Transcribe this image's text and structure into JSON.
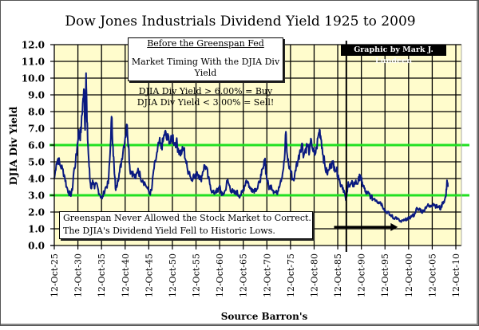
{
  "chart_data": {
    "type": "line",
    "title": "Dow Jones Industrials Dividend Yield 1925 to 2009",
    "xlabel": "Source Barron's",
    "ylabel": "DJIA Div Yield",
    "ylim": [
      0,
      12
    ],
    "xlim": [
      1925.78,
      2010.78
    ],
    "yticks": [
      "0.0",
      "1.0",
      "2.0",
      "3.0",
      "4.0",
      "5.0",
      "6.0",
      "7.0",
      "8.0",
      "9.0",
      "10.0",
      "11.0",
      "12.0"
    ],
    "xticks": [
      "12-Oct-25",
      "12-Oct-30",
      "12-Oct-35",
      "12-Oct-40",
      "12-Oct-45",
      "12-Oct-50",
      "12-Oct-55",
      "12-Oct-60",
      "12-Oct-65",
      "12-Oct-70",
      "12-Oct-75",
      "12-Oct-80",
      "12-Oct-85",
      "12-Oct-90",
      "12-Oct-95",
      "12-Oct-00",
      "12-Oct-05",
      "12-Oct-10"
    ],
    "grid": true,
    "reference_lines": [
      {
        "name": "buy-threshold",
        "y": 6.0,
        "color": "#22e022"
      },
      {
        "name": "sell-threshold",
        "y": 3.0,
        "color": "#22e022"
      }
    ],
    "vertical_marker": {
      "name": "greenspan-start",
      "x": 1987.6
    },
    "series": [
      {
        "name": "DJIA Dividend Yield",
        "color": "#0a1a80",
        "points": [
          [
            1925.8,
            4.0
          ],
          [
            1926.2,
            4.9
          ],
          [
            1926.6,
            5.2
          ],
          [
            1927.0,
            4.8
          ],
          [
            1927.5,
            4.6
          ],
          [
            1928.0,
            4.1
          ],
          [
            1928.4,
            3.5
          ],
          [
            1928.8,
            3.2
          ],
          [
            1929.2,
            3.0
          ],
          [
            1929.6,
            3.3
          ],
          [
            1929.9,
            4.4
          ],
          [
            1930.3,
            5.0
          ],
          [
            1930.6,
            5.8
          ],
          [
            1930.9,
            6.8
          ],
          [
            1931.2,
            6.4
          ],
          [
            1931.5,
            7.1
          ],
          [
            1931.8,
            8.5
          ],
          [
            1932.1,
            9.3
          ],
          [
            1932.3,
            6.9
          ],
          [
            1932.5,
            10.3
          ],
          [
            1932.7,
            7.4
          ],
          [
            1933.0,
            5.5
          ],
          [
            1933.3,
            4.0
          ],
          [
            1933.6,
            3.4
          ],
          [
            1933.9,
            3.9
          ],
          [
            1934.3,
            3.4
          ],
          [
            1934.7,
            3.7
          ],
          [
            1935.1,
            3.3
          ],
          [
            1935.5,
            3.0
          ],
          [
            1935.9,
            2.8
          ],
          [
            1936.3,
            3.2
          ],
          [
            1936.7,
            3.5
          ],
          [
            1937.2,
            3.7
          ],
          [
            1937.6,
            5.5
          ],
          [
            1937.9,
            7.7
          ],
          [
            1938.2,
            6.0
          ],
          [
            1938.5,
            4.3
          ],
          [
            1938.8,
            3.3
          ],
          [
            1939.2,
            3.9
          ],
          [
            1939.6,
            4.4
          ],
          [
            1940.0,
            5.0
          ],
          [
            1940.4,
            5.8
          ],
          [
            1940.8,
            6.5
          ],
          [
            1941.2,
            7.2
          ],
          [
            1941.5,
            6.0
          ],
          [
            1941.8,
            4.5
          ],
          [
            1942.2,
            4.4
          ],
          [
            1942.6,
            4.2
          ],
          [
            1943.0,
            4.0
          ],
          [
            1943.5,
            4.6
          ],
          [
            1944.0,
            4.1
          ],
          [
            1944.5,
            3.9
          ],
          [
            1945.0,
            3.7
          ],
          [
            1945.5,
            3.4
          ],
          [
            1946.0,
            3.1
          ],
          [
            1946.4,
            3.3
          ],
          [
            1946.8,
            4.5
          ],
          [
            1947.2,
            5.0
          ],
          [
            1947.6,
            5.6
          ],
          [
            1948.0,
            6.2
          ],
          [
            1948.4,
            5.8
          ],
          [
            1948.8,
            6.2
          ],
          [
            1949.2,
            6.8
          ],
          [
            1949.6,
            6.3
          ],
          [
            1950.0,
            6.5
          ],
          [
            1950.4,
            6.1
          ],
          [
            1950.8,
            6.6
          ],
          [
            1951.2,
            6.1
          ],
          [
            1951.6,
            6.2
          ],
          [
            1952.0,
            5.8
          ],
          [
            1952.4,
            5.5
          ],
          [
            1952.8,
            5.6
          ],
          [
            1953.2,
            5.8
          ],
          [
            1953.6,
            5.1
          ],
          [
            1954.0,
            4.5
          ],
          [
            1954.4,
            4.4
          ],
          [
            1954.8,
            3.9
          ],
          [
            1955.2,
            4.2
          ],
          [
            1955.6,
            4.0
          ],
          [
            1956.0,
            4.4
          ],
          [
            1956.4,
            4.2
          ],
          [
            1956.8,
            3.9
          ],
          [
            1957.2,
            4.4
          ],
          [
            1957.6,
            4.8
          ],
          [
            1958.0,
            4.6
          ],
          [
            1958.4,
            4.0
          ],
          [
            1958.8,
            3.6
          ],
          [
            1959.2,
            3.2
          ],
          [
            1959.6,
            3.1
          ],
          [
            1960.0,
            3.3
          ],
          [
            1960.4,
            3.2
          ],
          [
            1960.8,
            3.6
          ],
          [
            1961.2,
            3.0
          ],
          [
            1961.6,
            3.1
          ],
          [
            1962.0,
            3.3
          ],
          [
            1962.4,
            3.9
          ],
          [
            1962.8,
            3.6
          ],
          [
            1963.2,
            3.3
          ],
          [
            1963.6,
            3.2
          ],
          [
            1964.0,
            3.1
          ],
          [
            1964.4,
            3.2
          ],
          [
            1964.8,
            3.0
          ],
          [
            1965.2,
            3.0
          ],
          [
            1965.6,
            3.2
          ],
          [
            1966.0,
            3.5
          ],
          [
            1966.4,
            3.9
          ],
          [
            1966.8,
            3.8
          ],
          [
            1967.2,
            3.4
          ],
          [
            1967.6,
            3.4
          ],
          [
            1968.0,
            3.3
          ],
          [
            1968.4,
            3.4
          ],
          [
            1968.8,
            3.4
          ],
          [
            1969.2,
            3.8
          ],
          [
            1969.6,
            4.2
          ],
          [
            1970.0,
            4.6
          ],
          [
            1970.4,
            5.2
          ],
          [
            1970.6,
            4.3
          ],
          [
            1970.9,
            3.8
          ],
          [
            1971.3,
            3.4
          ],
          [
            1971.7,
            3.6
          ],
          [
            1972.1,
            3.3
          ],
          [
            1972.5,
            3.2
          ],
          [
            1972.9,
            3.1
          ],
          [
            1973.3,
            3.5
          ],
          [
            1973.7,
            3.9
          ],
          [
            1974.1,
            4.3
          ],
          [
            1974.5,
            5.1
          ],
          [
            1974.8,
            6.8
          ],
          [
            1975.0,
            5.6
          ],
          [
            1975.4,
            4.8
          ],
          [
            1975.8,
            4.5
          ],
          [
            1976.2,
            4.0
          ],
          [
            1976.6,
            4.0
          ],
          [
            1977.0,
            4.8
          ],
          [
            1977.4,
            5.1
          ],
          [
            1977.8,
            5.7
          ],
          [
            1978.2,
            6.1
          ],
          [
            1978.6,
            5.4
          ],
          [
            1979.0,
            5.8
          ],
          [
            1979.4,
            6.0
          ],
          [
            1979.8,
            5.6
          ],
          [
            1980.2,
            6.3
          ],
          [
            1980.6,
            5.6
          ],
          [
            1980.9,
            5.4
          ],
          [
            1981.3,
            5.8
          ],
          [
            1981.7,
            6.6
          ],
          [
            1982.0,
            6.9
          ],
          [
            1982.3,
            6.3
          ],
          [
            1982.7,
            5.4
          ],
          [
            1983.1,
            4.7
          ],
          [
            1983.5,
            4.3
          ],
          [
            1983.9,
            4.5
          ],
          [
            1984.3,
            4.9
          ],
          [
            1984.7,
            4.9
          ],
          [
            1985.1,
            4.7
          ],
          [
            1985.5,
            4.5
          ],
          [
            1985.9,
            4.2
          ],
          [
            1986.3,
            3.7
          ],
          [
            1986.7,
            3.6
          ],
          [
            1987.1,
            3.3
          ],
          [
            1987.5,
            2.7
          ],
          [
            1987.8,
            3.2
          ],
          [
            1988.0,
            3.8
          ],
          [
            1988.3,
            3.5
          ],
          [
            1988.7,
            3.7
          ],
          [
            1989.1,
            3.6
          ],
          [
            1989.5,
            3.8
          ],
          [
            1989.9,
            3.7
          ],
          [
            1990.3,
            4.0
          ],
          [
            1990.6,
            4.2
          ],
          [
            1990.9,
            3.7
          ],
          [
            1991.2,
            3.6
          ],
          [
            1991.6,
            3.2
          ],
          [
            1992.0,
            3.1
          ],
          [
            1992.4,
            3.1
          ],
          [
            1992.8,
            2.9
          ],
          [
            1993.2,
            2.8
          ],
          [
            1993.6,
            2.8
          ],
          [
            1994.0,
            2.7
          ],
          [
            1994.4,
            2.6
          ],
          [
            1994.8,
            2.6
          ],
          [
            1995.2,
            2.4
          ],
          [
            1995.6,
            2.2
          ],
          [
            1996.0,
            2.0
          ],
          [
            1996.4,
            2.0
          ],
          [
            1996.8,
            1.8
          ],
          [
            1997.2,
            1.8
          ],
          [
            1997.6,
            1.6
          ],
          [
            1998.0,
            1.7
          ],
          [
            1998.4,
            1.6
          ],
          [
            1998.8,
            1.5
          ],
          [
            1999.2,
            1.4
          ],
          [
            1999.6,
            1.5
          ],
          [
            2000.0,
            1.5
          ],
          [
            2000.4,
            1.6
          ],
          [
            2000.8,
            1.6
          ],
          [
            2001.2,
            1.7
          ],
          [
            2001.6,
            1.8
          ],
          [
            2002.0,
            1.8
          ],
          [
            2002.4,
            2.2
          ],
          [
            2002.8,
            2.1
          ],
          [
            2003.2,
            2.2
          ],
          [
            2003.6,
            2.0
          ],
          [
            2004.0,
            2.1
          ],
          [
            2004.4,
            2.3
          ],
          [
            2004.8,
            2.4
          ],
          [
            2005.2,
            2.3
          ],
          [
            2005.6,
            2.4
          ],
          [
            2006.0,
            2.5
          ],
          [
            2006.4,
            2.4
          ],
          [
            2006.8,
            2.3
          ],
          [
            2007.2,
            2.3
          ],
          [
            2007.6,
            2.2
          ],
          [
            2008.0,
            2.6
          ],
          [
            2008.4,
            2.7
          ],
          [
            2008.7,
            3.0
          ],
          [
            2008.9,
            3.9
          ],
          [
            2009.1,
            3.5
          ]
        ]
      }
    ],
    "annotations": {
      "timing_box": {
        "header": "Before the Greenspan Fed",
        "line1": "Market Timing With the DJIA Div Yield",
        "line2": "DJIA Div Yield > 6.00% = Buy",
        "line3": "DJIA Div Yield < 3.00% = Sell!"
      },
      "credit": "Graphic by Mark J. Lundeen",
      "greenspan_box": {
        "line1": "Greenspan Never Allowed the Stock Market to Correct.",
        "line2": "The DJIA's Dividend Yield Fell to Historic Lows."
      },
      "arrow": {
        "from_x": 1985.0,
        "to_x": 1998.5,
        "y": 1.1
      }
    }
  },
  "colors": {
    "plot_bg": "#fffccc",
    "grid": "#000000",
    "series": "#0a1a80",
    "threshold": "#22e022"
  }
}
